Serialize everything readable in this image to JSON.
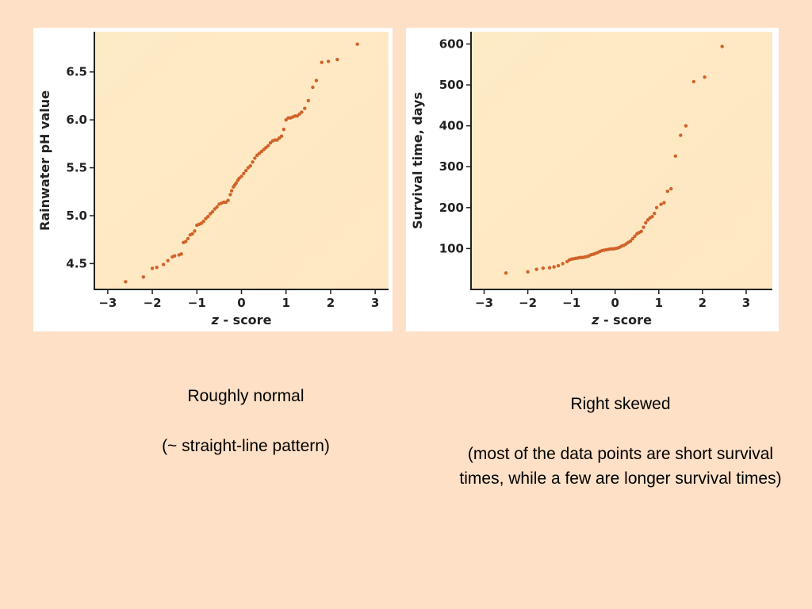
{
  "chart_data": [
    {
      "type": "scatter",
      "xlabel_italic": "z",
      "xlabel_rest": " - score",
      "ylabel": "Rainwater pH value",
      "xlim": [
        -3.3,
        3.3
      ],
      "ylim": [
        4.23,
        6.92
      ],
      "xticks": [
        -3,
        -2,
        -1,
        0,
        1,
        2,
        3
      ],
      "xtick_labels": [
        "−3",
        "−2",
        "−1",
        "0",
        "1",
        "2",
        "3"
      ],
      "yticks": [
        4.5,
        5.0,
        5.5,
        6.0,
        6.5
      ],
      "ytick_labels": [
        "4.5",
        "5.0",
        "5.5",
        "6.0",
        "6.5"
      ],
      "point_color": "#d0632a",
      "plot_bg_color": "#fdebc6",
      "points": [
        [
          -2.6,
          4.31
        ],
        [
          -2.2,
          4.36
        ],
        [
          -2.0,
          4.45
        ],
        [
          -1.9,
          4.46
        ],
        [
          -1.75,
          4.49
        ],
        [
          -1.65,
          4.53
        ],
        [
          -1.55,
          4.57
        ],
        [
          -1.5,
          4.58
        ],
        [
          -1.4,
          4.59
        ],
        [
          -1.35,
          4.6
        ],
        [
          -1.3,
          4.72
        ],
        [
          -1.25,
          4.73
        ],
        [
          -1.2,
          4.76
        ],
        [
          -1.15,
          4.8
        ],
        [
          -1.1,
          4.81
        ],
        [
          -1.05,
          4.84
        ],
        [
          -1.0,
          4.9
        ],
        [
          -0.95,
          4.91
        ],
        [
          -0.9,
          4.92
        ],
        [
          -0.85,
          4.94
        ],
        [
          -0.8,
          4.97
        ],
        [
          -0.75,
          4.99
        ],
        [
          -0.7,
          5.02
        ],
        [
          -0.65,
          5.04
        ],
        [
          -0.6,
          5.07
        ],
        [
          -0.55,
          5.09
        ],
        [
          -0.5,
          5.12
        ],
        [
          -0.45,
          5.13
        ],
        [
          -0.4,
          5.14
        ],
        [
          -0.35,
          5.14
        ],
        [
          -0.3,
          5.16
        ],
        [
          -0.25,
          5.22
        ],
        [
          -0.22,
          5.26
        ],
        [
          -0.18,
          5.3
        ],
        [
          -0.15,
          5.32
        ],
        [
          -0.12,
          5.34
        ],
        [
          -0.08,
          5.37
        ],
        [
          -0.05,
          5.39
        ],
        [
          0.0,
          5.41
        ],
        [
          0.05,
          5.44
        ],
        [
          0.1,
          5.47
        ],
        [
          0.15,
          5.5
        ],
        [
          0.2,
          5.52
        ],
        [
          0.25,
          5.56
        ],
        [
          0.3,
          5.6
        ],
        [
          0.35,
          5.63
        ],
        [
          0.4,
          5.65
        ],
        [
          0.45,
          5.67
        ],
        [
          0.5,
          5.69
        ],
        [
          0.55,
          5.71
        ],
        [
          0.6,
          5.73
        ],
        [
          0.65,
          5.76
        ],
        [
          0.7,
          5.78
        ],
        [
          0.75,
          5.79
        ],
        [
          0.8,
          5.79
        ],
        [
          0.85,
          5.81
        ],
        [
          0.9,
          5.83
        ],
        [
          0.95,
          5.9
        ],
        [
          1.0,
          6.0
        ],
        [
          1.05,
          6.02
        ],
        [
          1.1,
          6.02
        ],
        [
          1.15,
          6.03
        ],
        [
          1.2,
          6.04
        ],
        [
          1.25,
          6.04
        ],
        [
          1.3,
          6.06
        ],
        [
          1.35,
          6.08
        ],
        [
          1.42,
          6.12
        ],
        [
          1.5,
          6.2
        ],
        [
          1.6,
          6.34
        ],
        [
          1.68,
          6.41
        ],
        [
          1.8,
          6.6
        ],
        [
          1.95,
          6.61
        ],
        [
          2.15,
          6.63
        ],
        [
          2.6,
          6.79
        ]
      ]
    },
    {
      "type": "scatter",
      "xlabel_italic": "z",
      "xlabel_rest": " - score",
      "ylabel": "Survival time, days",
      "xlim": [
        -3.3,
        3.6
      ],
      "ylim": [
        0,
        630
      ],
      "xticks": [
        -3,
        -2,
        -1,
        0,
        1,
        2,
        3
      ],
      "xtick_labels": [
        "−3",
        "−2",
        "−1",
        "0",
        "1",
        "2",
        "3"
      ],
      "yticks": [
        100,
        200,
        300,
        400,
        500,
        600
      ],
      "ytick_labels": [
        "100",
        "200",
        "300",
        "400",
        "500",
        "600"
      ],
      "point_color": "#d0632a",
      "plot_bg_color": "#fdebc6",
      "points": [
        [
          -2.5,
          40
        ],
        [
          -2.0,
          43
        ],
        [
          -1.8,
          49
        ],
        [
          -1.65,
          52
        ],
        [
          -1.5,
          53
        ],
        [
          -1.4,
          55
        ],
        [
          -1.3,
          58
        ],
        [
          -1.2,
          63
        ],
        [
          -1.1,
          68
        ],
        [
          -1.05,
          72
        ],
        [
          -1.0,
          74
        ],
        [
          -0.95,
          75
        ],
        [
          -0.9,
          76
        ],
        [
          -0.85,
          77
        ],
        [
          -0.8,
          78
        ],
        [
          -0.75,
          78
        ],
        [
          -0.7,
          79
        ],
        [
          -0.65,
          80
        ],
        [
          -0.6,
          82
        ],
        [
          -0.55,
          85
        ],
        [
          -0.5,
          86
        ],
        [
          -0.45,
          88
        ],
        [
          -0.4,
          90
        ],
        [
          -0.35,
          93
        ],
        [
          -0.3,
          95
        ],
        [
          -0.25,
          96
        ],
        [
          -0.2,
          97
        ],
        [
          -0.15,
          98
        ],
        [
          -0.1,
          99
        ],
        [
          -0.05,
          99
        ],
        [
          0.0,
          100
        ],
        [
          0.05,
          101
        ],
        [
          0.1,
          103
        ],
        [
          0.15,
          106
        ],
        [
          0.2,
          108
        ],
        [
          0.25,
          111
        ],
        [
          0.3,
          115
        ],
        [
          0.35,
          118
        ],
        [
          0.4,
          124
        ],
        [
          0.45,
          130
        ],
        [
          0.5,
          136
        ],
        [
          0.55,
          139
        ],
        [
          0.6,
          142
        ],
        [
          0.65,
          152
        ],
        [
          0.7,
          163
        ],
        [
          0.75,
          170
        ],
        [
          0.8,
          175
        ],
        [
          0.85,
          178
        ],
        [
          0.9,
          186
        ],
        [
          0.95,
          200
        ],
        [
          1.05,
          208
        ],
        [
          1.12,
          212
        ],
        [
          1.2,
          240
        ],
        [
          1.28,
          246
        ],
        [
          1.38,
          326
        ],
        [
          1.5,
          377
        ],
        [
          1.62,
          400
        ],
        [
          1.8,
          508
        ],
        [
          2.05,
          519
        ],
        [
          2.45,
          594
        ]
      ]
    }
  ],
  "captions": {
    "left_line1": "Roughly normal",
    "left_line2": "(~ straight-line pattern)",
    "right_line1": "Right skewed",
    "right_line2": "(most of the data points are short survival times, while a few are longer survival times)"
  }
}
